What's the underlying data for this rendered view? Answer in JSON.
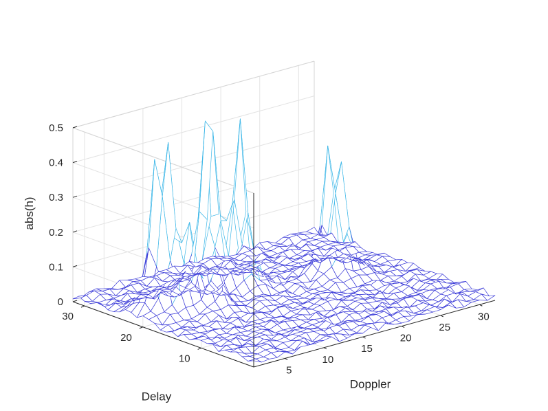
{
  "chart_data": {
    "type": "surface-3d",
    "xlabel": "Doppler",
    "ylabel": "Delay",
    "zlabel": "abs(h)",
    "xlim": [
      1,
      32
    ],
    "ylim": [
      1,
      32
    ],
    "zlim": [
      0,
      0.5
    ],
    "x_ticks": [
      "5",
      "10",
      "15",
      "20",
      "25",
      "30"
    ],
    "y_ticks": [
      "10",
      "20",
      "30"
    ],
    "z_ticks": [
      "0",
      "0.1",
      "0.2",
      "0.3",
      "0.4",
      "0.5"
    ],
    "grid": true,
    "wireframe_color": "#3b3bd8",
    "peak_color": "#3fb8e8",
    "peaks": [
      {
        "doppler": 4,
        "delay": 22,
        "value": 0.29
      },
      {
        "doppler": 5,
        "delay": 21,
        "value": 0.35
      },
      {
        "doppler": 7,
        "delay": 20,
        "value": 0.18
      },
      {
        "doppler": 9,
        "delay": 18,
        "value": 0.13
      },
      {
        "doppler": 12,
        "delay": 24,
        "value": 0.33
      },
      {
        "doppler": 13,
        "delay": 24,
        "value": 0.22
      },
      {
        "doppler": 15,
        "delay": 22,
        "value": 0.44
      },
      {
        "doppler": 24,
        "delay": 19,
        "value": 0.26
      },
      {
        "doppler": 25,
        "delay": 18,
        "value": 0.23
      }
    ],
    "noise_floor": 0.015
  }
}
